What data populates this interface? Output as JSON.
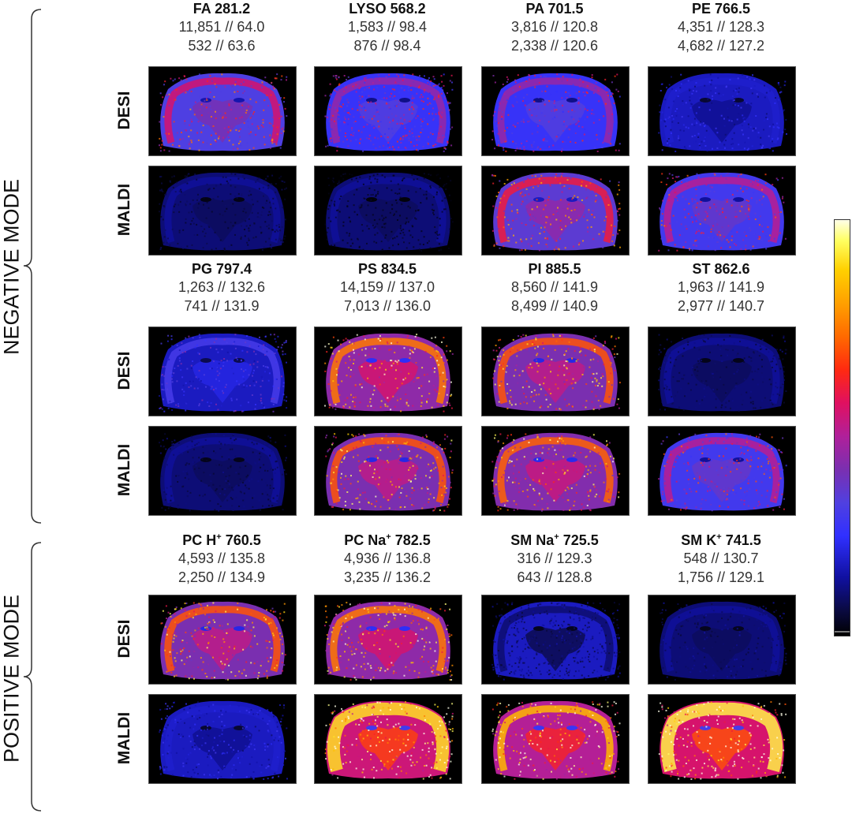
{
  "modes": {
    "negative": "NEGATIVE MODE",
    "positive": "POSITIVE MODE"
  },
  "row_labels": {
    "desi": "DESI",
    "maldi": "MALDI"
  },
  "groups": [
    {
      "panels": [
        {
          "title": "FA 281.2",
          "line1": "11,851 // 64.0",
          "line2": "532 // 63.6",
          "desi": {
            "level": 0.55,
            "hue": "purple"
          },
          "maldi": {
            "level": 0.08,
            "hue": "dark"
          }
        },
        {
          "title": "LYSO 568.2",
          "line1": "1,583 // 98.4",
          "line2": "876 // 98.4",
          "desi": {
            "level": 0.45,
            "hue": "speckle"
          },
          "maldi": {
            "level": 0.04,
            "hue": "dark"
          }
        },
        {
          "title": "PA 701.5",
          "line1": "3,816 // 120.8",
          "line2": "2,338 // 120.6",
          "desi": {
            "level": 0.45,
            "hue": "purple"
          },
          "maldi": {
            "level": 0.6,
            "hue": "orange"
          }
        },
        {
          "title": "PE 766.5",
          "line1": "4,351 // 128.3",
          "line2": "4,682 // 127.2",
          "desi": {
            "level": 0.2,
            "hue": "blue"
          },
          "maldi": {
            "level": 0.5,
            "hue": "purple"
          }
        }
      ]
    },
    {
      "panels": [
        {
          "title": "PG 797.4",
          "line1": "1,263 // 132.6",
          "line2": "741 // 131.9",
          "desi": {
            "level": 0.3,
            "hue": "blue"
          },
          "maldi": {
            "level": 0.1,
            "hue": "dark"
          }
        },
        {
          "title": "PS 834.5",
          "line1": "14,159 // 137.0",
          "line2": "7,013 // 136.0",
          "desi": {
            "level": 0.75,
            "hue": "orange"
          },
          "maldi": {
            "level": 0.7,
            "hue": "orange"
          }
        },
        {
          "title": "PI 885.5",
          "line1": "8,560 // 141.9",
          "line2": "8,499 // 140.9",
          "desi": {
            "level": 0.7,
            "hue": "orange"
          },
          "maldi": {
            "level": 0.72,
            "hue": "orange"
          }
        },
        {
          "title": "ST 862.6",
          "line1": "1,963 // 141.9",
          "line2": "2,977 // 140.7",
          "desi": {
            "level": 0.1,
            "hue": "dark"
          },
          "maldi": {
            "level": 0.5,
            "hue": "purple"
          }
        }
      ]
    },
    {
      "panels": [
        {
          "title_main": "PC H",
          "title_sup": "+",
          "title_rest": " 760.5",
          "line1": "4,593 // 135.8",
          "line2": "2,250 // 134.9",
          "desi": {
            "level": 0.7,
            "hue": "orange"
          },
          "maldi": {
            "level": 0.2,
            "hue": "blue"
          }
        },
        {
          "title_main": "PC Na",
          "title_sup": "+",
          "title_rest": " 782.5",
          "line1": "4,936 // 136.8",
          "line2": "3,235 // 136.2",
          "desi": {
            "level": 0.75,
            "hue": "orange"
          },
          "maldi": {
            "level": 0.92,
            "hue": "yellow"
          }
        },
        {
          "title_main": "SM Na",
          "title_sup": "+",
          "title_rest": " 725.5",
          "line1": "316 // 129.3",
          "line2": "643 // 128.8",
          "desi": {
            "level": 0.12,
            "hue": "speckle"
          },
          "maldi": {
            "level": 0.85,
            "hue": "orange"
          }
        },
        {
          "title_main": "SM K",
          "title_sup": "+",
          "title_rest": " 741.5",
          "line1": "548 // 130.7",
          "line2": "1,756 // 129.1",
          "desi": {
            "level": 0.12,
            "hue": "dark"
          },
          "maldi": {
            "level": 0.95,
            "hue": "yellow"
          }
        }
      ]
    }
  ],
  "colors": {
    "colorbar_low": "#000000",
    "colorbar_mid": "#ff2a10",
    "colorbar_high": "#ffffe8"
  }
}
